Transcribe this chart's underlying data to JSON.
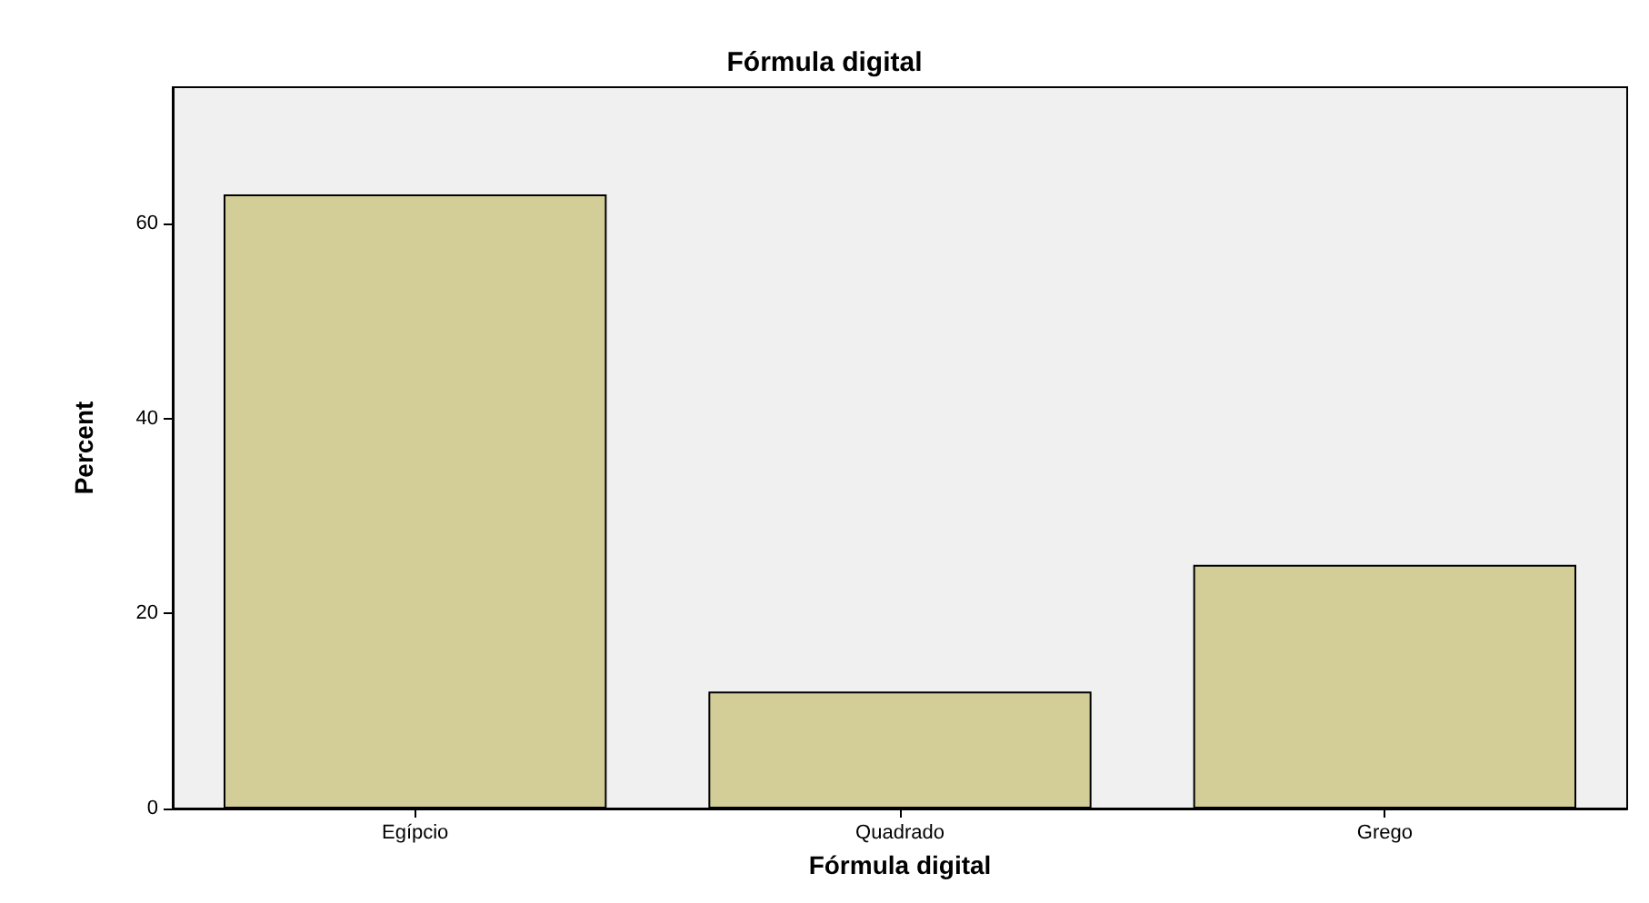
{
  "chart_data": {
    "type": "bar",
    "title": "Fórmula digital",
    "xlabel": "Fórmula digital",
    "ylabel": "Percent",
    "categories": [
      "Egípcio",
      "Quadrado",
      "Grego"
    ],
    "values": [
      63,
      12,
      25
    ],
    "color": "#d3ce97",
    "ylim": [
      0,
      74
    ],
    "yticks": [
      0,
      20,
      40,
      60
    ],
    "grid": false
  }
}
